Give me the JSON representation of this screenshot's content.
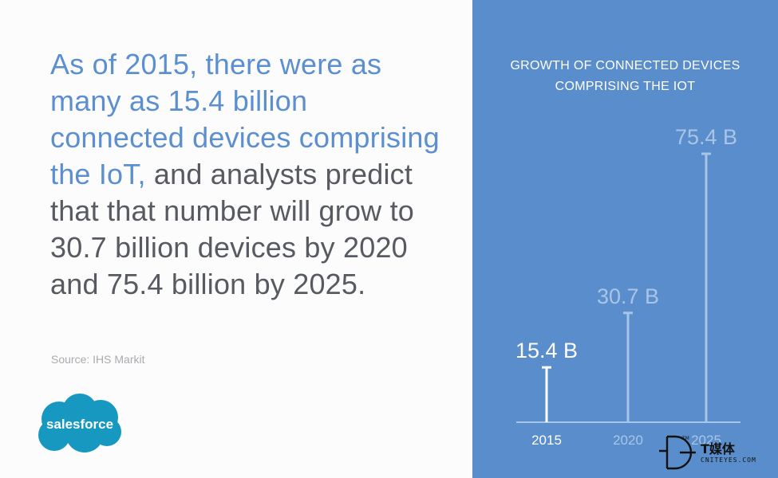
{
  "headline": {
    "highlight": "As of 2015, there were as many as 15.4 billion connected devices comprising the IoT,",
    "rest": " and analysts predict that that number will grow to 30.7 billion devices by 2020 and 75.4 billion by 2025."
  },
  "source": "Source: IHS Markit",
  "logo": {
    "text": "salesforce",
    "color": "#1798c1"
  },
  "watermark": {
    "main": "T媒体",
    "sub": "CNITEYES.COM"
  },
  "colors": {
    "panel": "#5a8dcb",
    "headline_blue": "#5b8fcf",
    "headline_gray": "#575a60",
    "bar_active": "#ffffff",
    "bar_inactive": "#a9c5e6"
  },
  "chart_data": {
    "type": "bar",
    "title_line1": "GROWTH OF CONNECTED DEVICES",
    "title_line2": "COMPRISING THE IOT",
    "categories": [
      "2015",
      "2020",
      "2025"
    ],
    "values": [
      15.4,
      30.7,
      75.4
    ],
    "value_labels": [
      "15.4 B",
      "30.7 B",
      "75.4 B"
    ],
    "unit": "B",
    "highlight_index": 0,
    "ylim": [
      0,
      75.4
    ],
    "grid": false,
    "legend": "none"
  }
}
